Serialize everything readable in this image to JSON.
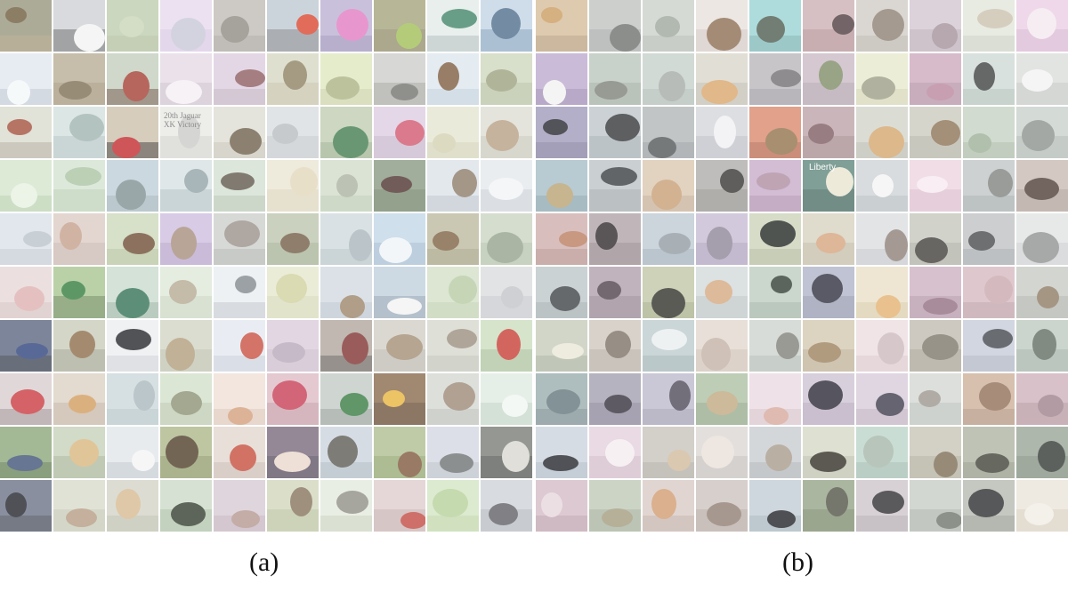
{
  "figure": {
    "panels": [
      {
        "id": "a",
        "caption": "(a)",
        "rows": 10,
        "cols": 10,
        "content": "mixed-class thumbnails"
      },
      {
        "id": "b",
        "caption": "(b)",
        "rows": 10,
        "cols": 10,
        "content": "cat thumbnails"
      }
    ],
    "embedded_text": {
      "panel_a_sign": "20th Jaguar\nXK Victory",
      "panel_b_sign": "Liberty"
    }
  },
  "panel_a_tiles": [
    {
      "bg": "#8c8a6f",
      "fg": "#6b5a3a",
      "gr": "#9b9070"
    },
    {
      "bg": "#c9ccd0",
      "fg": "#f2f2f2",
      "gr": "#7d7f82"
    },
    {
      "bg": "#b7c7a6",
      "fg": "#c8d3b5",
      "gr": "#adbd9a"
    },
    {
      "bg": "#e4d6ec",
      "fg": "#c7c7d6",
      "gr": "#d8c8e4"
    },
    {
      "bg": "#b9b6b0",
      "fg": "#8d8880",
      "gr": "#a8a49c"
    },
    {
      "bg": "#b7c3cd",
      "fg": "#d8432c",
      "gr": "#8a8f96"
    },
    {
      "bg": "#b4a7cf",
      "fg": "#e07ac0",
      "gr": "#9c90b9"
    },
    {
      "bg": "#9b9a6e",
      "fg": "#9fbd55",
      "gr": "#8a8660"
    },
    {
      "bg": "#dfe9e6",
      "fg": "#3d8367",
      "gr": "#b9c6c4"
    },
    {
      "bg": "#bcd0e2",
      "fg": "#4b6b8a",
      "gr": "#8aa7c2"
    },
    {
      "bg": "#dde5ee",
      "fg": "#f4f7f9",
      "gr": "#c3ccd6"
    },
    {
      "bg": "#b0a38b",
      "fg": "#7a6b4e",
      "gr": "#a09174"
    },
    {
      "bg": "#bcc9b6",
      "fg": "#a13b2e",
      "gr": "#7d6f5e"
    },
    {
      "bg": "#e3d6e2",
      "fg": "#f3eef2",
      "gr": "#cfc2cf"
    },
    {
      "bg": "#d9c7db",
      "fg": "#8c5a5f",
      "gr": "#c2b3c3"
    },
    {
      "bg": "#d3d2bd",
      "fg": "#8a7f5f",
      "gr": "#c4c1a8"
    },
    {
      "bg": "#dbe4b8",
      "fg": "#a9b17f",
      "gr": "#cbd3a6"
    },
    {
      "bg": "#c8c8c5",
      "fg": "#6f706c",
      "gr": "#a8a9a4"
    },
    {
      "bg": "#d9e3ec",
      "fg": "#7b5a3c",
      "gr": "#c3d1dc"
    },
    {
      "bg": "#c9d2b6",
      "fg": "#9aa07d",
      "gr": "#b6c0a0"
    },
    {
      "bg": "#d6d7c9",
      "fg": "#a24d3a",
      "gr": "#b8b3a4"
    },
    {
      "bg": "#cfdcdb",
      "fg": "#9db2ae",
      "gr": "#b6c6c4"
    },
    {
      "bg": "#c7b9a3",
      "fg": "#c0262a",
      "gr": "#5e554a"
    },
    {
      "bg": "#e6e6e2",
      "fg": "#c9c9c6",
      "gr": "#d4d4d0"
    },
    {
      "bg": "#d9d9cf",
      "fg": "#6c5d48",
      "gr": "#c7c5b8"
    },
    {
      "bg": "#d6d9dc",
      "fg": "#b7bbbf",
      "gr": "#c5c9cc"
    },
    {
      "bg": "#b9c7a9",
      "fg": "#3f7a4c",
      "gr": "#9eb08f"
    },
    {
      "bg": "#d9c8dd",
      "fg": "#d1556d",
      "gr": "#c6b4ca"
    },
    {
      "bg": "#e2e2cc",
      "fg": "#d2cfae",
      "gr": "#d3d2b8"
    },
    {
      "bg": "#dad9cf",
      "fg": "#b59d83",
      "gr": "#c9c7ba"
    },
    {
      "bg": "#cfe2c6",
      "fg": "#e6efe0",
      "gr": "#b8d1ad"
    },
    {
      "bg": "#cfe0cc",
      "fg": "#a9c3a2",
      "gr": "#b9d0b5"
    },
    {
      "bg": "#b8c9d2",
      "fg": "#7d8e91",
      "gr": "#a0b2ba"
    },
    {
      "bg": "#d3dde0",
      "fg": "#8fa2a6",
      "gr": "#b6c5c9"
    },
    {
      "bg": "#cfdccd",
      "fg": "#5c5548",
      "gr": "#b8c7b5"
    },
    {
      "bg": "#e8e2cf",
      "fg": "#e2d6b9",
      "gr": "#dcd4bd"
    },
    {
      "bg": "#cdd8c4",
      "fg": "#a9b29f",
      "gr": "#bccab1"
    },
    {
      "bg": "#7d8f75",
      "fg": "#4a2e2a",
      "gr": "#6a7d60"
    },
    {
      "bg": "#d8dfe6",
      "fg": "#8b7a66",
      "gr": "#bfc8d0"
    },
    {
      "bg": "#e2e6ea",
      "fg": "#f1f3f5",
      "gr": "#cdd3d9"
    },
    {
      "bg": "#d5dde4",
      "fg": "#b9c3cb",
      "gr": "#c3ccd4"
    },
    {
      "bg": "#d8c6bf",
      "fg": "#c49e8a",
      "gr": "#c8b4ac"
    },
    {
      "bg": "#c8d4b4",
      "fg": "#6b4a31",
      "gr": "#b3c29b"
    },
    {
      "bg": "#c9b7dc",
      "fg": "#a58c7a",
      "gr": "#b5a1c9"
    },
    {
      "bg": "#c7cac8",
      "fg": "#998e86",
      "gr": "#b3b6b3"
    },
    {
      "bg": "#b5bfa5",
      "fg": "#6f5a43",
      "gr": "#a1ad8f"
    },
    {
      "bg": "#cbd6da",
      "fg": "#a8b4ba",
      "gr": "#b7c4c9"
    },
    {
      "bg": "#bdd3e4",
      "fg": "#eef3f7",
      "gr": "#a3bdd1"
    },
    {
      "bg": "#b5b395",
      "fg": "#7c5f40",
      "gr": "#a29f7f"
    },
    {
      "bg": "#c4d0bc",
      "fg": "#92a189",
      "gr": "#b1c0a8"
    },
    {
      "bg": "#e3d3d3",
      "fg": "#dcb0ae",
      "gr": "#d6c2c1"
    },
    {
      "bg": "#9fbf86",
      "fg": "#2f7a3a",
      "gr": "#6f8f5a"
    },
    {
      "bg": "#c3d7c8",
      "fg": "#2f6f52",
      "gr": "#9fb8a7"
    },
    {
      "bg": "#dbe5d4",
      "fg": "#b3a890",
      "gr": "#c9d6c0"
    },
    {
      "bg": "#e7ebee",
      "fg": "#7f868c",
      "gr": "#c9cfd4"
    },
    {
      "bg": "#e3e5c7",
      "fg": "#cfcf9e",
      "gr": "#d5d8b7"
    },
    {
      "bg": "#cfd6de",
      "fg": "#9a8266",
      "gr": "#bcc5cf"
    },
    {
      "bg": "#b9cbd9",
      "fg": "#f2f2f2",
      "gr": "#97a9b8"
    },
    {
      "bg": "#cfdcc0",
      "fg": "#b5c9a2",
      "gr": "#c1d0b0"
    },
    {
      "bg": "#d6d8da",
      "fg": "#c1c3c6",
      "gr": "#c6c8cb"
    },
    {
      "bg": "#4a5673",
      "fg": "#2a3f7a",
      "gr": "#2f3548"
    },
    {
      "bg": "#c3c6b3",
      "fg": "#8a6a47",
      "gr": "#a4a693"
    },
    {
      "bg": "#e9ecef",
      "fg": "#202226",
      "gr": "#d3d6d9"
    },
    {
      "bg": "#cbd0bd",
      "fg": "#ae9b7a",
      "gr": "#bcc1ac"
    },
    {
      "bg": "#e1e6ee",
      "fg": "#c84b3e",
      "gr": "#cbd2dd"
    },
    {
      "bg": "#d6c6d6",
      "fg": "#b7a7b9",
      "gr": "#c9b9c9"
    },
    {
      "bg": "#a89d93",
      "fg": "#7c2e2c",
      "gr": "#6d6660"
    },
    {
      "bg": "#cdc9c0",
      "fg": "#a08b72",
      "gr": "#bbb7ad"
    },
    {
      "bg": "#d1d4c9",
      "fg": "#998b7b",
      "gr": "#c0c3b7"
    },
    {
      "bg": "#c6d9b8",
      "fg": "#c73a32",
      "gr": "#a9c099"
    },
    {
      "bg": "#d4c7c9",
      "fg": "#c8363b",
      "gr": "#a99a9c"
    },
    {
      "bg": "#d8cbbe",
      "fg": "#d19a5b",
      "gr": "#c4b4a4"
    },
    {
      "bg": "#c6d3d6",
      "fg": "#a6b6ba",
      "gr": "#b4c4c8"
    },
    {
      "bg": "#cfdcc4",
      "fg": "#8a8f72",
      "gr": "#b9c8ab"
    },
    {
      "bg": "#eddcd2",
      "fg": "#d29e78",
      "gr": "#ddc7ba"
    },
    {
      "bg": "#d9b4be",
      "fg": "#c63a52",
      "gr": "#c49aa5"
    },
    {
      "bg": "#bcc4bf",
      "fg": "#33783e",
      "gr": "#9aa39c"
    },
    {
      "bg": "#7c5a3a",
      "fg": "#e6b23a",
      "gr": "#5e4228"
    },
    {
      "bg": "#cfd2cc",
      "fg": "#9a8674",
      "gr": "#bcbfb8"
    },
    {
      "bg": "#dce9de",
      "fg": "#f1f6f2",
      "gr": "#c3d6c7"
    },
    {
      "bg": "#7f9d6a",
      "fg": "#3c4f73",
      "gr": "#5d7a4b"
    },
    {
      "bg": "#c1cbb2",
      "fg": "#d7b47b",
      "gr": "#a8b497"
    },
    {
      "bg": "#dde3e7",
      "fg": "#f3f3f3",
      "gr": "#c4ccd2"
    },
    {
      "bg": "#a4b07c",
      "fg": "#4a3a24",
      "gr": "#899661"
    },
    {
      "bg": "#ded2c9",
      "fg": "#c44a3a",
      "gr": "#cbbdb2"
    },
    {
      "bg": "#6a5a6f",
      "fg": "#e9d7cb",
      "gr": "#4f4355"
    },
    {
      "bg": "#c5cfd9",
      "fg": "#5a5750",
      "gr": "#aeb9c3"
    },
    {
      "bg": "#a6b783",
      "fg": "#7c5438",
      "gr": "#8da267"
    },
    {
      "bg": "#ced3dd",
      "fg": "#6c7070",
      "gr": "#b9bfc9"
    },
    {
      "bg": "#6a6e68",
      "fg": "#d9d6cf",
      "gr": "#4b4e49"
    },
    {
      "bg": "#5b6479",
      "fg": "#1e2028",
      "gr": "#3f4656"
    },
    {
      "bg": "#d4d7c6",
      "fg": "#b39a80",
      "gr": "#c3c7b3"
    },
    {
      "bg": "#cfcfc1",
      "fg": "#d6b890",
      "gr": "#bebfae"
    },
    {
      "bg": "#c7d6c2",
      "fg": "#2f3a2c",
      "gr": "#acbfa6"
    },
    {
      "bg": "#d3c4cf",
      "fg": "#b3958e",
      "gr": "#c3b1bc"
    },
    {
      "bg": "#cdd3b6",
      "fg": "#847159",
      "gr": "#b9c29e"
    },
    {
      "bg": "#e1e7d9",
      "fg": "#8d8d83",
      "gr": "#cbd4c1"
    },
    {
      "bg": "#dbc7c7",
      "fg": "#c2473f",
      "gr": "#c8b0b0"
    },
    {
      "bg": "#cfe2bd",
      "fg": "#b4cf98",
      "gr": "#bfd6a8"
    },
    {
      "bg": "#c9cdd3",
      "fg": "#5d5e63",
      "gr": "#b3b8bf"
    }
  ],
  "panel_b_tiles": [
    {
      "bg": "#d1b58e",
      "fg": "#c99a5c",
      "gr": "#b79d78"
    },
    {
      "bg": "#b9bcba",
      "fg": "#6c6e6b",
      "gr": "#a4a7a5"
    },
    {
      "bg": "#c5ccc5",
      "fg": "#9ba59a",
      "gr": "#b2bab1"
    },
    {
      "bg": "#e5ddd8",
      "fg": "#8a6a4f",
      "gr": "#d3c9c3"
    },
    {
      "bg": "#8fcfcf",
      "fg": "#4a5a4c",
      "gr": "#75b3b3"
    },
    {
      "bg": "#c7a8ac",
      "fg": "#4c3a3c",
      "gr": "#b28f93"
    },
    {
      "bg": "#cbc7c0",
      "fg": "#8c7e70",
      "gr": "#b9b4ac"
    },
    {
      "bg": "#cfc0cb",
      "fg": "#a39098",
      "gr": "#bdacb7"
    },
    {
      "bg": "#dfe3d7",
      "fg": "#c9c0ad",
      "gr": "#ccd1c3"
    },
    {
      "bg": "#e7c9e1",
      "fg": "#f3e8ee",
      "gr": "#d8b5d1"
    },
    {
      "bg": "#b5a1c9",
      "fg": "#f1f1f1",
      "gr": "#9d88b4"
    },
    {
      "bg": "#b3c0b5",
      "fg": "#7b7f74",
      "gr": "#9fac9f"
    },
    {
      "bg": "#c0ccc6",
      "fg": "#a3a9a4",
      "gr": "#aebbb4"
    },
    {
      "bg": "#d5d1c5",
      "fg": "#d8a468",
      "gr": "#c1bdb0"
    },
    {
      "bg": "#b1aeb3",
      "fg": "#6e6b70",
      "gr": "#9c99a0"
    },
    {
      "bg": "#c4b3be",
      "fg": "#7b8a62",
      "gr": "#b09fab"
    },
    {
      "bg": "#e4e6c6",
      "fg": "#9a9b82",
      "gr": "#d4d6b3"
    },
    {
      "bg": "#c7a1b6",
      "fg": "#b8849a",
      "gr": "#b38da2"
    },
    {
      "bg": "#c9d6d0",
      "fg": "#3b3d3c",
      "gr": "#b3c2bb"
    },
    {
      "bg": "#d7dad7",
      "fg": "#f2f2f2",
      "gr": "#c4c8c4"
    },
    {
      "bg": "#9690b2",
      "fg": "#23222c",
      "gr": "#7f799c"
    },
    {
      "bg": "#b7bfc5",
      "fg": "#2f3234",
      "gr": "#a2abb1"
    },
    {
      "bg": "#a9aeb0",
      "fg": "#4f5355",
      "gr": "#949a9c"
    },
    {
      "bg": "#d0d1d6",
      "fg": "#f0f0f2",
      "gr": "#bdbec4"
    },
    {
      "bg": "#d67c5e",
      "fg": "#8e6f48",
      "gr": "#b76247"
    },
    {
      "bg": "#b59a9f",
      "fg": "#7b5a5f",
      "gr": "#a08589"
    },
    {
      "bg": "#cdd0c5",
      "fg": "#d3a46a",
      "gr": "#babdb1"
    },
    {
      "bg": "#c5c4b7",
      "fg": "#8a6f52",
      "gr": "#b2b1a3"
    },
    {
      "bg": "#bfcdbc",
      "fg": "#9aae94",
      "gr": "#aabaa7"
    },
    {
      "bg": "#c3cbc5",
      "fg": "#8a8f8b",
      "gr": "#afb8b2"
    },
    {
      "bg": "#9db6c0",
      "fg": "#b6a06f",
      "gr": "#85a0aa"
    },
    {
      "bg": "#b6bcc0",
      "fg": "#363a3c",
      "gr": "#a1a8ac"
    },
    {
      "bg": "#d7c1a8",
      "fg": "#c59c72",
      "gr": "#c4ac93"
    },
    {
      "bg": "#a5a3a1",
      "fg": "#33302e",
      "gr": "#908e8b"
    },
    {
      "bg": "#c2a3c4",
      "fg": "#ad8a9f",
      "gr": "#ad8daf"
    },
    {
      "bg": "#4d7a6f",
      "fg": "#e8e4cf",
      "gr": "#3a6157"
    },
    {
      "bg": "#c9cfd2",
      "fg": "#f3f3f3",
      "gr": "#b5bcc0"
    },
    {
      "bg": "#ebd0dc",
      "fg": "#f6e9ef",
      "gr": "#dcbccb"
    },
    {
      "bg": "#b9bfbf",
      "fg": "#7d807c",
      "gr": "#a4abab"
    },
    {
      "bg": "#c3b3ac",
      "fg": "#4a3a33",
      "gr": "#ad9c95"
    },
    {
      "bg": "#c9a6a3",
      "fg": "#b97b5e",
      "gr": "#b48f8c"
    },
    {
      "bg": "#a79a9e",
      "fg": "#2c2628",
      "gr": "#918488"
    },
    {
      "bg": "#b7c4cd",
      "fg": "#8f9aa2",
      "gr": "#a1afb9"
    },
    {
      "bg": "#c0b5cf",
      "fg": "#8b8296",
      "gr": "#ab9fbc"
    },
    {
      "bg": "#c6ceb1",
      "fg": "#1f2420",
      "gr": "#b1ba99"
    },
    {
      "bg": "#d3cdb9",
      "fg": "#d5a27b",
      "gr": "#c0b9a3"
    },
    {
      "bg": "#d7d9dc",
      "fg": "#8c7e75",
      "gr": "#c4c7cb"
    },
    {
      "bg": "#bfc0b6",
      "fg": "#3e3b36",
      "gr": "#aaab9f"
    },
    {
      "bg": "#b8bbbd",
      "fg": "#444648",
      "gr": "#a3a7aa"
    },
    {
      "bg": "#dee0e1",
      "fg": "#8e8f8f",
      "gr": "#cccfd0"
    },
    {
      "bg": "#b5c0c2",
      "fg": "#3b3f41",
      "gr": "#a0acae"
    },
    {
      "bg": "#a896a4",
      "fg": "#4d3d48",
      "gr": "#93808e"
    },
    {
      "bg": "#b9c09c",
      "fg": "#2b2d25",
      "gr": "#a3ab85"
    },
    {
      "bg": "#cfd5d7",
      "fg": "#d3a67c",
      "gr": "#bcc3c5"
    },
    {
      "bg": "#b7c7b9",
      "fg": "#2d3a2f",
      "gr": "#a1b2a3"
    },
    {
      "bg": "#a7acc2",
      "fg": "#2a2c3a",
      "gr": "#9196ad"
    },
    {
      "bg": "#e7dcc0",
      "fg": "#e3b070",
      "gr": "#d9cbaa"
    },
    {
      "bg": "#c7a9bb",
      "fg": "#8f6c80",
      "gr": "#b393a6"
    },
    {
      "bg": "#d1b3bb",
      "fg": "#c8a7ac",
      "gr": "#bd9ea6"
    },
    {
      "bg": "#c2c4bf",
      "fg": "#8b7860",
      "gr": "#aeb1aa"
    },
    {
      "bg": "#bfc6b3",
      "fg": "#e9e6d6",
      "gr": "#a9b19c"
    },
    {
      "bg": "#c9c0b7",
      "fg": "#7a6e63",
      "gr": "#b5aca2"
    },
    {
      "bg": "#b5c6c8",
      "fg": "#e9edee",
      "gr": "#9fb2b4"
    },
    {
      "bg": "#dfd3ca",
      "fg": "#c2b0a3",
      "gr": "#cec0b6"
    },
    {
      "bg": "#c7cfc9",
      "fg": "#7c7e76",
      "gr": "#b2bbb4"
    },
    {
      "bg": "#cfc3a9",
      "fg": "#9a7f5a",
      "gr": "#bbad91"
    },
    {
      "bg": "#ead9dd",
      "fg": "#cbb7bc",
      "gr": "#dcc7cc"
    },
    {
      "bg": "#b9b4a8",
      "fg": "#7b7466",
      "gr": "#a59f91"
    },
    {
      "bg": "#c0c6d4",
      "fg": "#3f4249",
      "gr": "#abb2c1"
    },
    {
      "bg": "#b7c4ba",
      "fg": "#5d6a5f",
      "gr": "#a1b0a5"
    },
    {
      "bg": "#8fa3a5",
      "fg": "#5f7378",
      "gr": "#778b8e"
    },
    {
      "bg": "#9a95a8",
      "fg": "#2f2c37",
      "gr": "#837e92"
    },
    {
      "bg": "#b6b3c7",
      "fg": "#4b4654",
      "gr": "#a09cb2"
    },
    {
      "bg": "#a5b99a",
      "fg": "#bda77d",
      "gr": "#8fa484"
    },
    {
      "bg": "#e7d6de",
      "fg": "#d6a79a",
      "gr": "#d8c3cc"
    },
    {
      "bg": "#c9bccf",
      "fg": "#262431",
      "gr": "#b4a6bb"
    },
    {
      "bg": "#d4c6d6",
      "fg": "#3b3848",
      "gr": "#c0b0c2"
    },
    {
      "bg": "#cfd3cf",
      "fg": "#9a948b",
      "gr": "#bbc0bb"
    },
    {
      "bg": "#c7a78e",
      "fg": "#8e6c55",
      "gr": "#b19179"
    },
    {
      "bg": "#c9a9b3",
      "fg": "#9c7f88",
      "gr": "#b4929d"
    },
    {
      "bg": "#c6cfd9",
      "fg": "#1f2127",
      "gr": "#afbac6"
    },
    {
      "bg": "#e0ccd8",
      "fg": "#f3ecef",
      "gr": "#d1b9c8"
    },
    {
      "bg": "#c2bdb4",
      "fg": "#d1b99a",
      "gr": "#adaaa0"
    },
    {
      "bg": "#d7d2cf",
      "fg": "#e9dfd8",
      "gr": "#c5bfbb"
    },
    {
      "bg": "#c3c7ca",
      "fg": "#a69889",
      "gr": "#adb2b6"
    },
    {
      "bg": "#d1d4c1",
      "fg": "#2e2a23",
      "gr": "#bcc0aa"
    },
    {
      "bg": "#b6d0c3",
      "fg": "#a3b4a6",
      "gr": "#9fbbae"
    },
    {
      "bg": "#c2bfb0",
      "fg": "#7a6a52",
      "gr": "#aeaa99"
    },
    {
      "bg": "#a5ab9a",
      "fg": "#3c3f34",
      "gr": "#8f9682"
    },
    {
      "bg": "#8e9b8a",
      "fg": "#2e3430",
      "gr": "#7a8877"
    },
    {
      "bg": "#d0b4c0",
      "fg": "#e7d6dc",
      "gr": "#bc9eab"
    },
    {
      "bg": "#b8c3b0",
      "fg": "#a29a7c",
      "gr": "#a2ae98"
    },
    {
      "bg": "#d5c5bf",
      "fg": "#d09a6e",
      "gr": "#c2b0a9"
    },
    {
      "bg": "#c8bcb8",
      "fg": "#8e7b6f",
      "gr": "#b4a7a2"
    },
    {
      "bg": "#bac7d0",
      "fg": "#1d1e22",
      "gr": "#a4b2bd"
    },
    {
      "bg": "#8b9a7b",
      "fg": "#4e4f42",
      "gr": "#748464"
    },
    {
      "bg": "#c7bfc4",
      "fg": "#2c2a2d",
      "gr": "#b2a9af"
    },
    {
      "bg": "#c0c7bf",
      "fg": "#6c7368",
      "gr": "#aab3a9"
    },
    {
      "bg": "#aeb1a9",
      "fg": "#27292a",
      "gr": "#989c93"
    },
    {
      "bg": "#e7e1d5",
      "fg": "#f1ece4",
      "gr": "#d9d0c1"
    }
  ]
}
